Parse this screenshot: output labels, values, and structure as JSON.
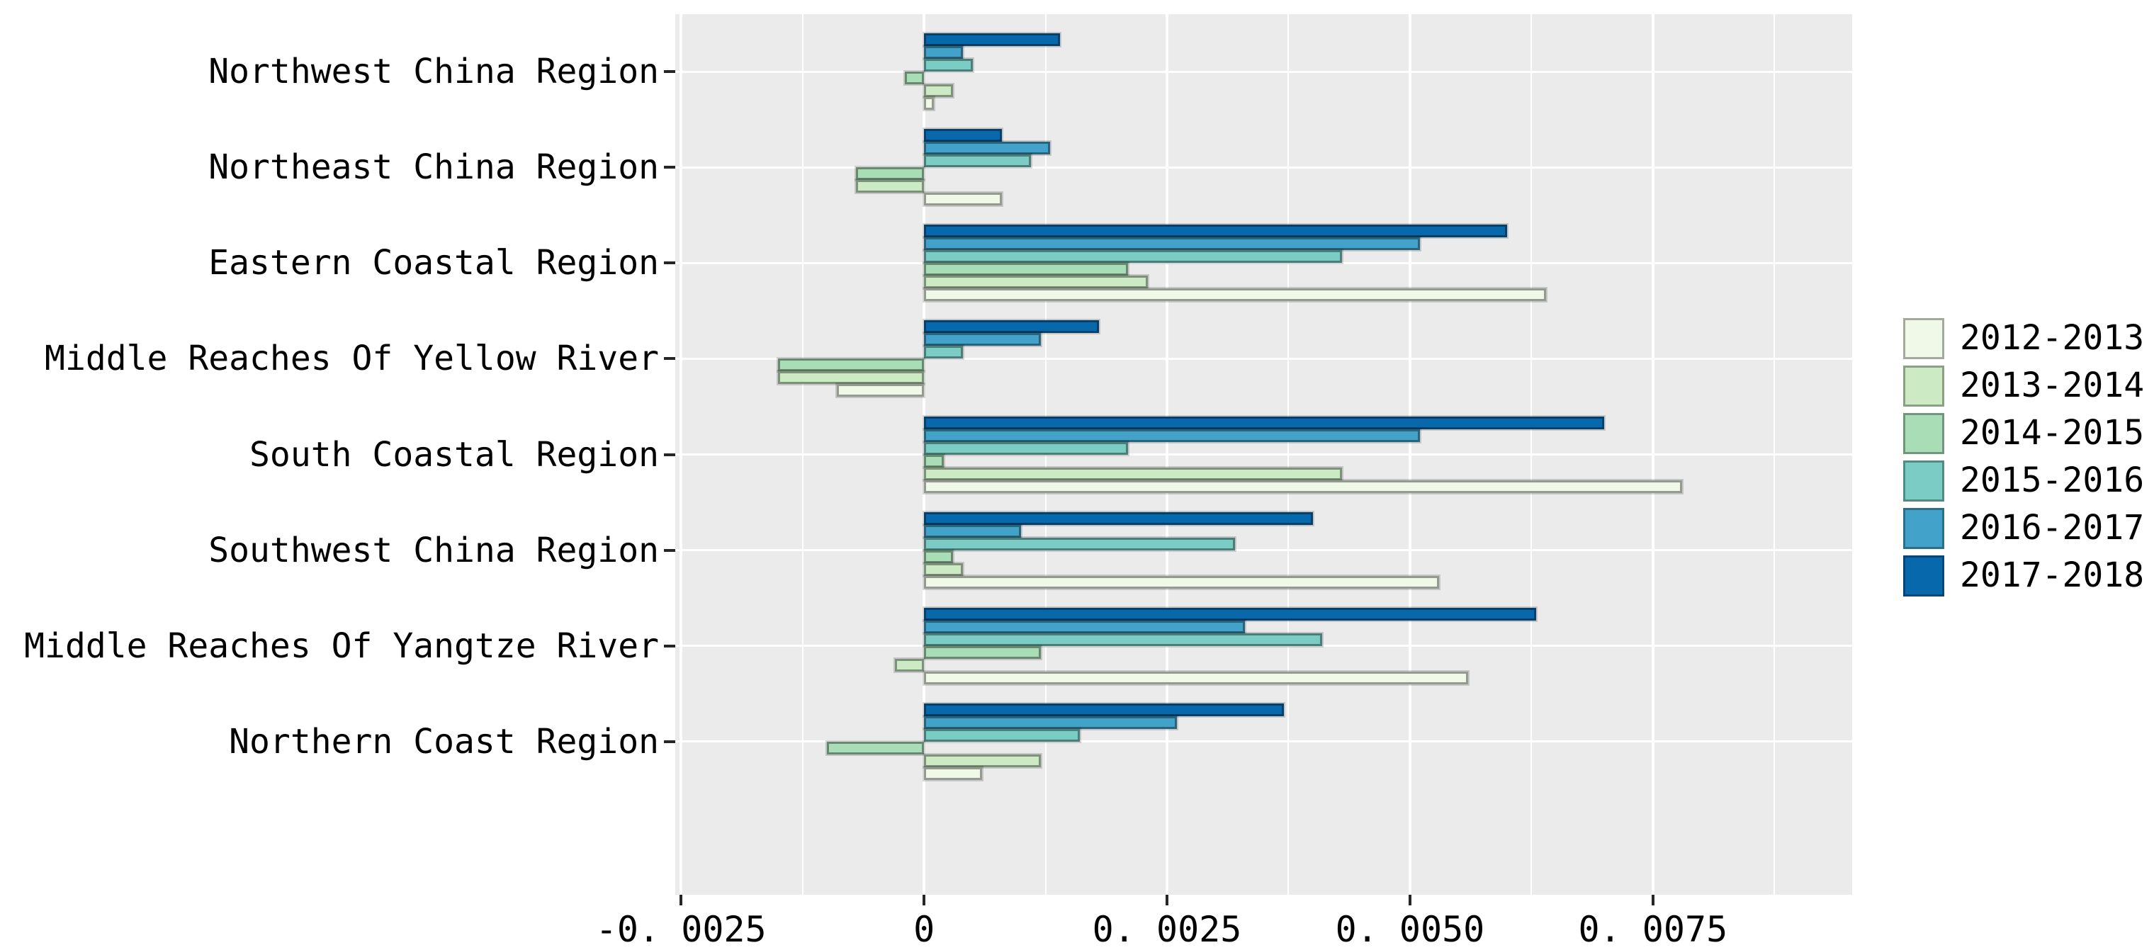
{
  "chart_data": {
    "type": "bar",
    "orientation": "horizontal",
    "title": "",
    "xlabel": "",
    "ylabel": "",
    "grid": true,
    "panel_background": "#EBEBEB",
    "gridline_color": "#FFFFFF",
    "axis_text_color": "#000000",
    "xlim": [
      -0.00256,
      0.00955
    ],
    "x_major_tick_step": 0.0025,
    "x_minor_grid_step": 0.00125,
    "categories": [
      "Northwest China Region",
      "Northeast China Region",
      "Eastern Coastal Region",
      "Middle Reaches Of Yellow River",
      "South Coastal Region",
      "Southwest China Region",
      "Middle Reaches Of Yangtze River",
      "Northern Coast Region"
    ],
    "series": [
      {
        "name": "2012-2013",
        "color": "#f0f9e8",
        "values": [
          0.0001,
          0.0008,
          0.0064,
          -0.0009,
          0.0078,
          0.0053,
          0.0056,
          0.0006
        ]
      },
      {
        "name": "2013-2014",
        "color": "#ccebc5",
        "values": [
          0.0003,
          -0.0007,
          0.0023,
          -0.0015,
          0.0043,
          0.0004,
          -0.0003,
          0.0012
        ]
      },
      {
        "name": "2014-2015",
        "color": "#a8ddb5",
        "values": [
          -0.0002,
          -0.0007,
          0.0021,
          -0.0015,
          0.0002,
          0.0003,
          0.0012,
          -0.001
        ]
      },
      {
        "name": "2015-2016",
        "color": "#7bccc4",
        "values": [
          0.0005,
          0.0011,
          0.0043,
          0.0004,
          0.0021,
          0.0032,
          0.0041,
          0.0016
        ]
      },
      {
        "name": "2016-2017",
        "color": "#43a2ca",
        "values": [
          0.0004,
          0.0013,
          0.0051,
          0.0012,
          0.0051,
          0.001,
          0.0033,
          0.0026
        ]
      },
      {
        "name": "2017-2018",
        "color": "#0868ac",
        "values": [
          0.0014,
          0.0008,
          0.006,
          0.0018,
          0.007,
          0.004,
          0.0063,
          0.0037
        ]
      }
    ],
    "x_ticks": [
      {
        "value": -0.0025,
        "label": "-0. 0025"
      },
      {
        "value": 0,
        "label": "0"
      },
      {
        "value": 0.0025,
        "label": "0. 0025"
      },
      {
        "value": 0.005,
        "label": "0. 0050"
      },
      {
        "value": 0.0075,
        "label": "0. 0075"
      }
    ],
    "legend": {
      "position": "right",
      "entries": [
        "2012-2013",
        "2013-2014",
        "2014-2015",
        "2015-2016",
        "2016-2017",
        "2017-2018"
      ]
    }
  }
}
